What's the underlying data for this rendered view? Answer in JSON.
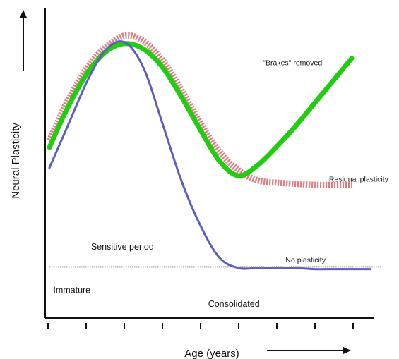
{
  "chart_data": {
    "type": "line",
    "xlabel": "Age (years)",
    "ylabel": "Neural Plasticity",
    "xlim": [
      0,
      10
    ],
    "ylim": [
      0,
      100
    ],
    "x_ticks": 9,
    "grid": false,
    "series": [
      {
        "color": "#e07a80",
        "style": "dashed",
        "points": [
          [
            0,
            56
          ],
          [
            0.5,
            74
          ],
          [
            1,
            88
          ],
          [
            1.5,
            97
          ],
          [
            2,
            102
          ],
          [
            2.5,
            99.5
          ],
          [
            3,
            91
          ],
          [
            3.5,
            78
          ],
          [
            4,
            63.5
          ],
          [
            4.5,
            51
          ],
          [
            5,
            43
          ],
          [
            5.5,
            38.5
          ],
          [
            6,
            37.5
          ],
          [
            6.5,
            37
          ],
          [
            7,
            36.5
          ],
          [
            7.5,
            36.5
          ],
          [
            8,
            36.5
          ]
        ]
      },
      {
        "color": "#22cc11",
        "style": "solid",
        "points": [
          [
            0,
            53
          ],
          [
            0.5,
            71
          ],
          [
            1,
            85.5
          ],
          [
            1.5,
            95
          ],
          [
            2,
            98.5
          ],
          [
            2.5,
            96
          ],
          [
            3,
            88
          ],
          [
            3.5,
            75
          ],
          [
            4,
            60.5
          ],
          [
            4.5,
            47
          ],
          [
            5,
            40.5
          ],
          [
            5.5,
            45
          ],
          [
            6,
            53
          ],
          [
            6.5,
            62
          ],
          [
            7,
            72
          ],
          [
            7.5,
            82
          ],
          [
            8,
            92
          ]
        ]
      },
      {
        "color": "#5a5ec0",
        "style": "solid",
        "points": [
          [
            0,
            44
          ],
          [
            0.5,
            63
          ],
          [
            1,
            82
          ],
          [
            1.5,
            96
          ],
          [
            2,
            99
          ],
          [
            2.5,
            87.5
          ],
          [
            3,
            63
          ],
          [
            3.5,
            38
          ],
          [
            4,
            18.5
          ],
          [
            4.5,
            4.5
          ],
          [
            5,
            0
          ],
          [
            5.5,
            0
          ],
          [
            6,
            0
          ],
          [
            6.5,
            0
          ],
          [
            7,
            -0.5
          ],
          [
            7.5,
            -0.5
          ],
          [
            8,
            -0.5
          ],
          [
            8.5,
            -0.5
          ]
        ]
      },
      {
        "color": "#999999",
        "style": "dotted",
        "points": [
          [
            0,
            0.5
          ],
          [
            1,
            0.5
          ],
          [
            2,
            0.5
          ],
          [
            3,
            0.5
          ],
          [
            4,
            0.5
          ],
          [
            5,
            0.5
          ],
          [
            6,
            0.5
          ],
          [
            7,
            0.5
          ],
          [
            8,
            0.5
          ],
          [
            8.8,
            0.5
          ]
        ]
      }
    ],
    "annotations": [
      {
        "text": "\"Brakes\" removed",
        "x": 5.65,
        "y": 89
      },
      {
        "text": "Residual plasticity",
        "x": 7.4,
        "y": 38
      },
      {
        "text": "Sensitive period",
        "x": 1.1,
        "y": 8
      },
      {
        "text": "No plasticity",
        "x": 6.25,
        "y": 2.5
      },
      {
        "text": "Immature",
        "x": 0.1,
        "y": -11
      },
      {
        "text": "Consolidated",
        "x": 4.2,
        "y": -17
      }
    ]
  }
}
